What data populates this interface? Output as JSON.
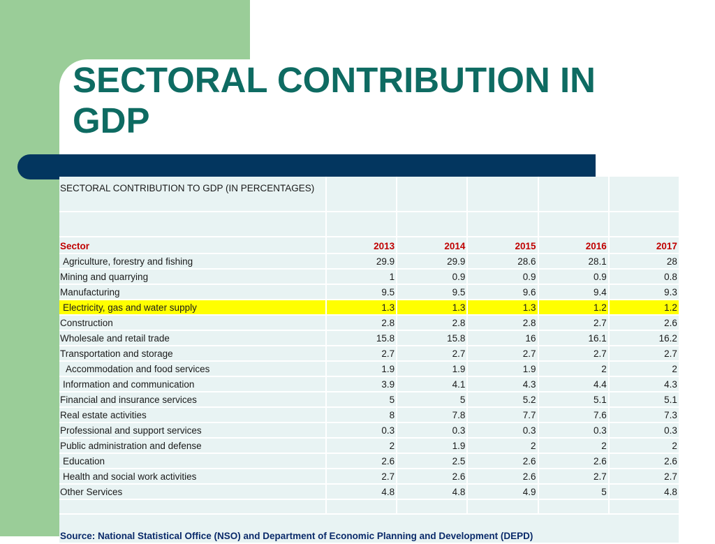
{
  "slide": {
    "title_line1": "SECTORAL CONTRIBUTION IN",
    "title_line2": "GDP",
    "colors": {
      "title": "#0e6b62",
      "accent_green": "#9acd98",
      "bar": "#03365f",
      "highlight": "#ffff00",
      "header_text": "#c00000"
    }
  },
  "table": {
    "caption": "SECTORAL  CONTRIBUTION  TO  GDP  (IN PERCENTAGES)",
    "header": {
      "label": "Sector",
      "years": [
        "2013",
        "2014",
        "2015",
        "2016",
        "2017"
      ]
    },
    "rows": [
      {
        "label": "Agriculture, forestry and fishing",
        "values": [
          "29.9",
          "29.9",
          "28.6",
          "28.1",
          "28"
        ]
      },
      {
        "label": "Mining and quarrying",
        "values": [
          "1",
          "0.9",
          "0.9",
          "0.9",
          "0.8"
        ]
      },
      {
        "label": "Manufacturing",
        "values": [
          "9.5",
          "9.5",
          "9.6",
          "9.4",
          "9.3"
        ]
      },
      {
        "label": "Electricity, gas and water supply",
        "values": [
          "1.3",
          "1.3",
          "1.3",
          "1.2",
          "1.2"
        ]
      },
      {
        "label": "Construction",
        "values": [
          "2.8",
          "2.8",
          "2.8",
          "2.7",
          "2.6"
        ]
      },
      {
        "label": "Wholesale and retail trade",
        "values": [
          "15.8",
          "15.8",
          "16",
          "16.1",
          "16.2"
        ]
      },
      {
        "label": "Transportation and  storage",
        "values": [
          "2.7",
          "2.7",
          "2.7",
          "2.7",
          "2.7"
        ]
      },
      {
        "label": "Accommodation and food services",
        "values": [
          "1.9",
          "1.9",
          "1.9",
          "2",
          "2"
        ]
      },
      {
        "label": "Information and communication",
        "values": [
          "3.9",
          "4.1",
          "4.3",
          "4.4",
          "4.3"
        ]
      },
      {
        "label": "Financial and insurance services",
        "values": [
          "5",
          "5",
          "5.2",
          "5.1",
          "5.1"
        ]
      },
      {
        "label": "Real estate activities",
        "values": [
          "8",
          "7.8",
          "7.7",
          "7.6",
          "7.3"
        ]
      },
      {
        "label": "Professional and support services",
        "values": [
          "0.3",
          "0.3",
          "0.3",
          "0.3",
          "0.3"
        ]
      },
      {
        "label": "Public administration and defense",
        "values": [
          "2",
          "1.9",
          "2",
          "2",
          "2"
        ]
      },
      {
        "label": "Education",
        "values": [
          "2.6",
          "2.5",
          "2.6",
          "2.6",
          "2.6"
        ]
      },
      {
        "label": "Health and social work activities",
        "values": [
          "2.7",
          "2.6",
          "2.6",
          "2.7",
          "2.7"
        ]
      },
      {
        "label": "Other Services",
        "values": [
          "4.8",
          "4.8",
          "4.9",
          "5",
          "4.8"
        ]
      }
    ],
    "source": "Source: National Statistical Office (NSO) and Department of Economic Planning and Development (DEPD)"
  }
}
